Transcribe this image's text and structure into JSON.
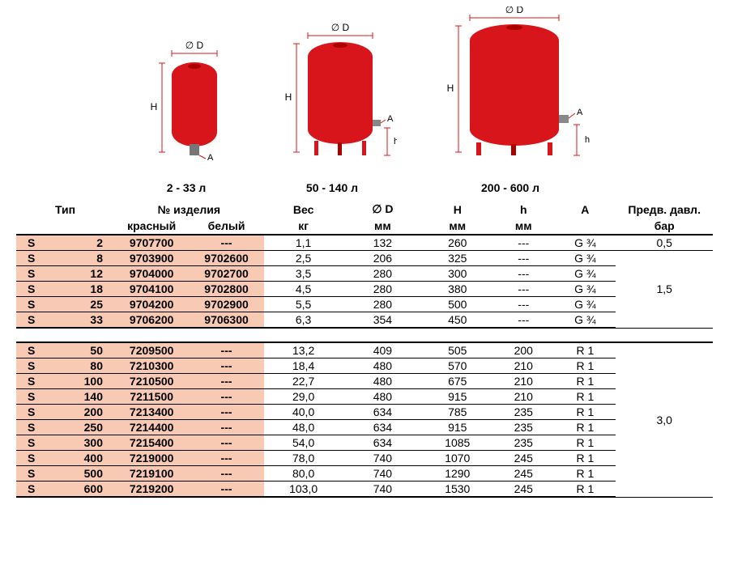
{
  "diagram_labels": {
    "d1": "2 - 33 л",
    "d2": "50 - 140 л",
    "d3": "200 - 600 л"
  },
  "dim_labels": {
    "D": "∅ D",
    "H": "H",
    "h": "h",
    "A": "A"
  },
  "tank_color": "#d8151a",
  "headers": {
    "type": "Тип",
    "article": "№ изделия",
    "red": "красный",
    "white": "белый",
    "weight": "Вес",
    "weight_u": "кг",
    "D": "∅ D",
    "D_u": "мм",
    "H": "H",
    "H_u": "мм",
    "h": "h",
    "h_u": "мм",
    "A": "A",
    "press": "Предв. давл.",
    "press_u": "бар"
  },
  "highlight_color": "#f8c9b3",
  "group1_press": "0,5",
  "group2_press": "1,5",
  "group3_press": "3,0",
  "rows1": [
    {
      "s": "S",
      "n": "2",
      "red": "9707700",
      "white": "---",
      "w": "1,1",
      "D": "132",
      "H": "260",
      "h": "---",
      "A": "G ¾"
    },
    {
      "s": "S",
      "n": "8",
      "red": "9703900",
      "white": "9702600",
      "w": "2,5",
      "D": "206",
      "H": "325",
      "h": "---",
      "A": "G ¾"
    },
    {
      "s": "S",
      "n": "12",
      "red": "9704000",
      "white": "9702700",
      "w": "3,5",
      "D": "280",
      "H": "300",
      "h": "---",
      "A": "G ¾"
    },
    {
      "s": "S",
      "n": "18",
      "red": "9704100",
      "white": "9702800",
      "w": "4,5",
      "D": "280",
      "H": "380",
      "h": "---",
      "A": "G ¾"
    },
    {
      "s": "S",
      "n": "25",
      "red": "9704200",
      "white": "9702900",
      "w": "5,5",
      "D": "280",
      "H": "500",
      "h": "---",
      "A": "G ¾"
    },
    {
      "s": "S",
      "n": "33",
      "red": "9706200",
      "white": "9706300",
      "w": "6,3",
      "D": "354",
      "H": "450",
      "h": "---",
      "A": "G ¾"
    }
  ],
  "rows2": [
    {
      "s": "S",
      "n": "50",
      "red": "7209500",
      "white": "---",
      "w": "13,2",
      "D": "409",
      "H": "505",
      "h": "200",
      "A": "R 1"
    },
    {
      "s": "S",
      "n": "80",
      "red": "7210300",
      "white": "---",
      "w": "18,4",
      "D": "480",
      "H": "570",
      "h": "210",
      "A": "R 1"
    },
    {
      "s": "S",
      "n": "100",
      "red": "7210500",
      "white": "---",
      "w": "22,7",
      "D": "480",
      "H": "675",
      "h": "210",
      "A": "R 1"
    },
    {
      "s": "S",
      "n": "140",
      "red": "7211500",
      "white": "---",
      "w": "29,0",
      "D": "480",
      "H": "915",
      "h": "210",
      "A": "R 1"
    },
    {
      "s": "S",
      "n": "200",
      "red": "7213400",
      "white": "---",
      "w": "40,0",
      "D": "634",
      "H": "785",
      "h": "235",
      "A": "R 1"
    },
    {
      "s": "S",
      "n": "250",
      "red": "7214400",
      "white": "---",
      "w": "48,0",
      "D": "634",
      "H": "915",
      "h": "235",
      "A": "R 1"
    },
    {
      "s": "S",
      "n": "300",
      "red": "7215400",
      "white": "---",
      "w": "54,0",
      "D": "634",
      "H": "1085",
      "h": "235",
      "A": "R 1"
    },
    {
      "s": "S",
      "n": "400",
      "red": "7219000",
      "white": "---",
      "w": "78,0",
      "D": "740",
      "H": "1070",
      "h": "245",
      "A": "R 1"
    },
    {
      "s": "S",
      "n": "500",
      "red": "7219100",
      "white": "---",
      "w": "80,0",
      "D": "740",
      "H": "1290",
      "h": "245",
      "A": "R 1"
    },
    {
      "s": "S",
      "n": "600",
      "red": "7219200",
      "white": "---",
      "w": "103,0",
      "D": "740",
      "H": "1530",
      "h": "245",
      "A": "R 1"
    }
  ]
}
